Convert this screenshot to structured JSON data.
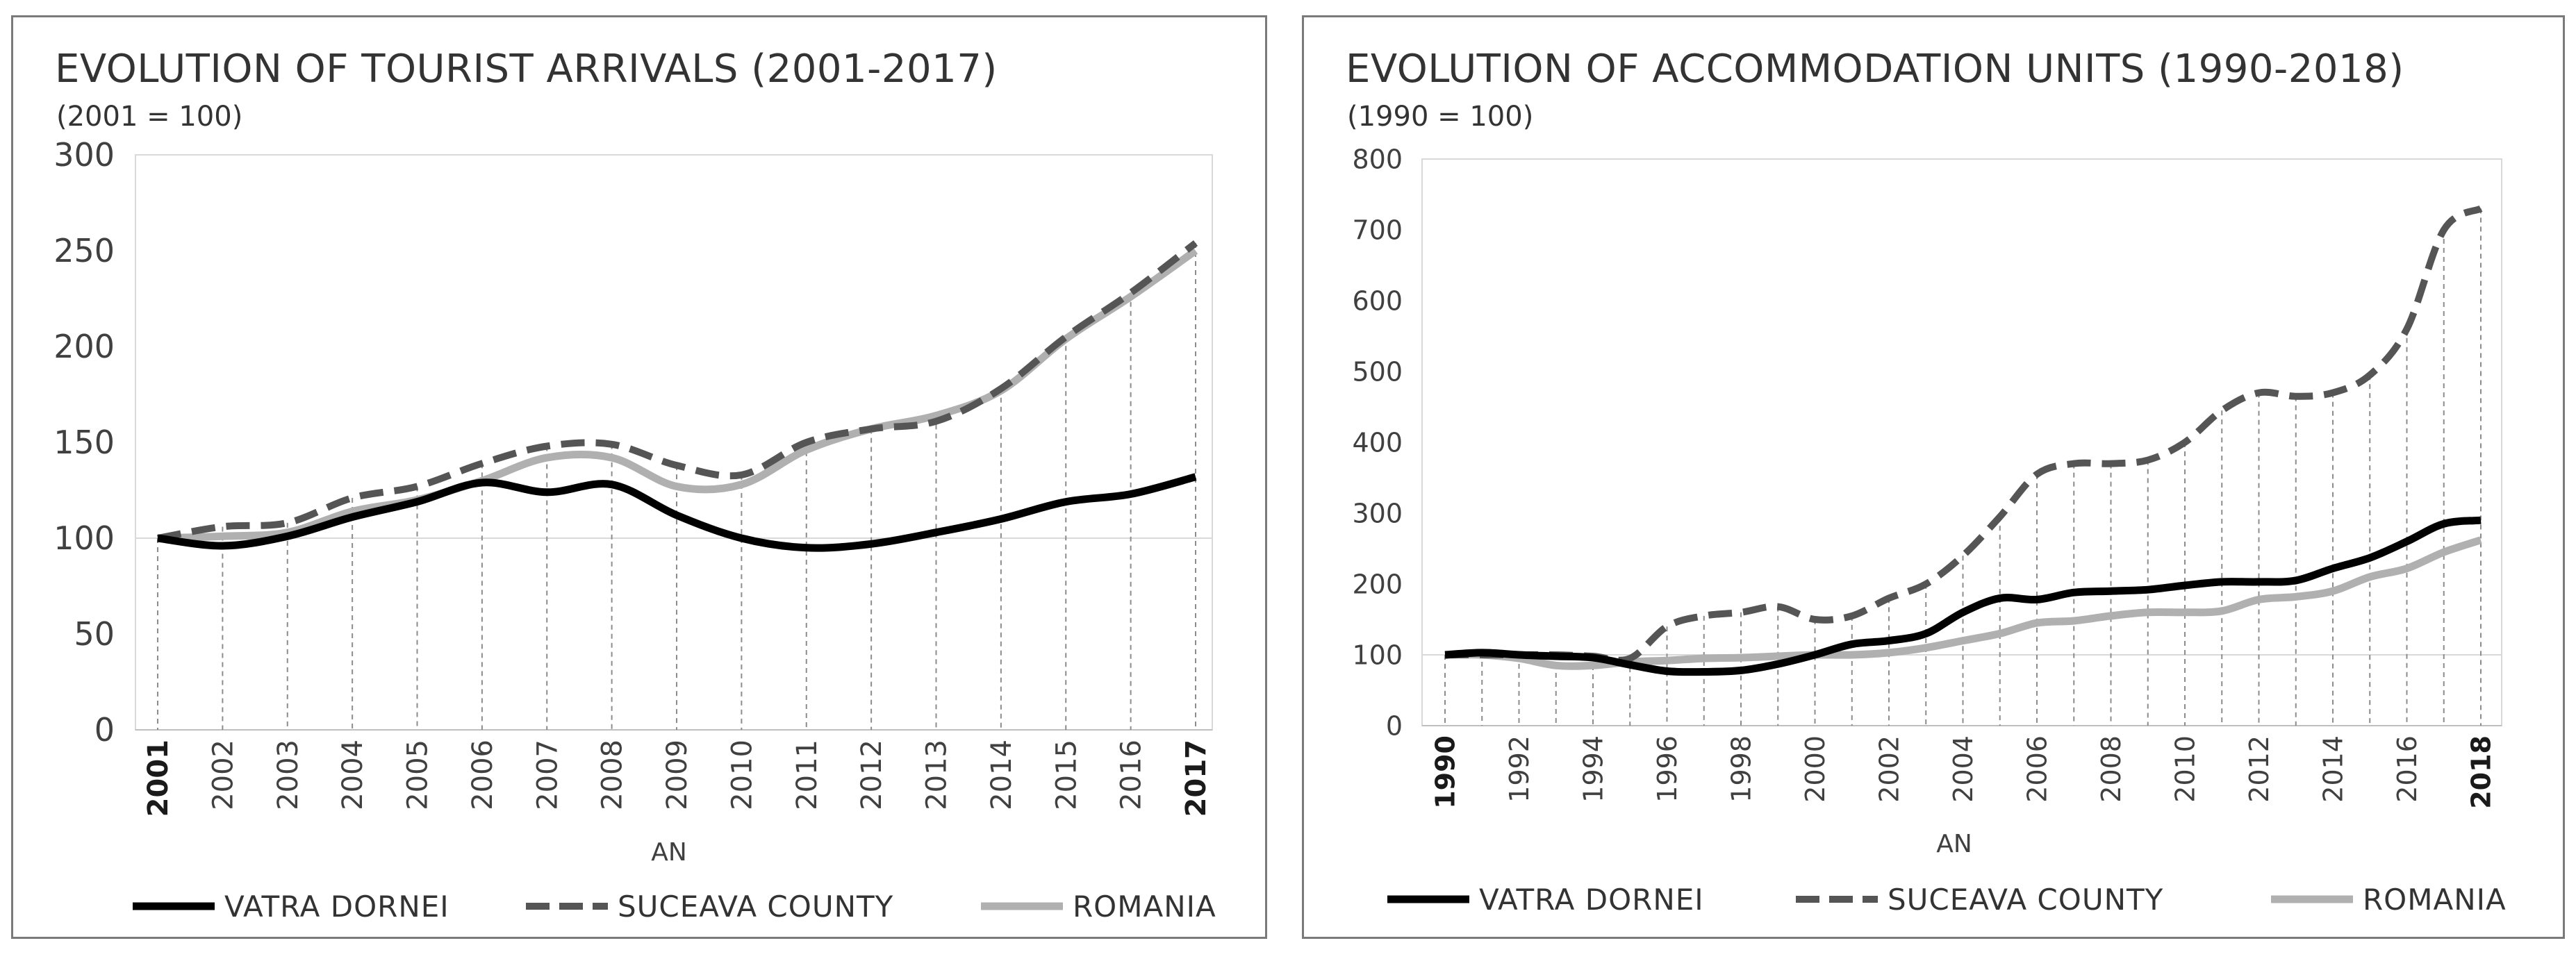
{
  "chart_data": [
    {
      "type": "line",
      "title": "EVOLUTION OF TOURIST ARRIVALS (2001-2017)",
      "subtitle": "(2001 = 100)",
      "xlabel": "AN",
      "ylabel": "",
      "ylim": [
        0,
        300
      ],
      "y_ticks": [
        0,
        50,
        100,
        150,
        200,
        250,
        300
      ],
      "x": [
        "2001",
        "2002",
        "2003",
        "2004",
        "2005",
        "2006",
        "2007",
        "2008",
        "2009",
        "2010",
        "2011",
        "2012",
        "2013",
        "2014",
        "2015",
        "2016",
        "2017"
      ],
      "legend_position": "bottom",
      "series": [
        {
          "name": "VATRA DORNEI",
          "style": "solid",
          "color": "#000000",
          "values": [
            100,
            96,
            101,
            111,
            119,
            129,
            124,
            128,
            112,
            100,
            95,
            97,
            103,
            110,
            119,
            123,
            132
          ]
        },
        {
          "name": "SUCEAVA COUNTY",
          "style": "dashed",
          "color": "#555555",
          "values": [
            100,
            106,
            108,
            121,
            127,
            139,
            148,
            149,
            138,
            133,
            150,
            157,
            161,
            178,
            205,
            228,
            254
          ]
        },
        {
          "name": "ROMANIA",
          "style": "solid",
          "color": "#b0b0b0",
          "values": [
            100,
            101,
            103,
            114,
            120,
            130,
            142,
            142,
            127,
            128,
            146,
            157,
            164,
            177,
            204,
            226,
            250
          ]
        }
      ]
    },
    {
      "type": "line",
      "title": "EVOLUTION OF ACCOMMODATION UNITS (1990-2018)",
      "subtitle": "(1990 = 100)",
      "xlabel": "AN",
      "ylabel": "",
      "ylim": [
        0,
        800
      ],
      "y_ticks": [
        0,
        100,
        200,
        300,
        400,
        500,
        600,
        700,
        800
      ],
      "x": [
        "1990",
        "1991",
        "1992",
        "1993",
        "1994",
        "1995",
        "1996",
        "1997",
        "1998",
        "1999",
        "2000",
        "2001",
        "2002",
        "2003",
        "2004",
        "2005",
        "2006",
        "2007",
        "2008",
        "2009",
        "2010",
        "2011",
        "2012",
        "2013",
        "2014",
        "2015",
        "2016",
        "2017",
        "2018"
      ],
      "x_tick_labels": [
        "1990",
        "1992",
        "1994",
        "1996",
        "1998",
        "2000",
        "2002",
        "2004",
        "2006",
        "2008",
        "2010",
        "2012",
        "2014",
        "2016",
        "2018"
      ],
      "legend_position": "bottom",
      "series": [
        {
          "name": "VATRA DORNEI",
          "style": "solid",
          "color": "#000000",
          "values": [
            100,
            103,
            100,
            98,
            96,
            86,
            77,
            76,
            78,
            87,
            100,
            115,
            120,
            130,
            160,
            180,
            178,
            188,
            190,
            192,
            198,
            203,
            203,
            205,
            222,
            237,
            260,
            285,
            290
          ]
        },
        {
          "name": "SUCEAVA COUNTY",
          "style": "dashed",
          "color": "#555555",
          "values": [
            100,
            100,
            100,
            100,
            98,
            95,
            140,
            155,
            160,
            168,
            150,
            155,
            180,
            200,
            240,
            295,
            355,
            370,
            370,
            375,
            400,
            445,
            470,
            465,
            470,
            495,
            560,
            700,
            730
          ]
        },
        {
          "name": "ROMANIA",
          "style": "solid",
          "color": "#b0b0b0",
          "values": [
            100,
            100,
            95,
            85,
            85,
            90,
            92,
            95,
            96,
            98,
            100,
            100,
            103,
            110,
            120,
            130,
            145,
            148,
            155,
            160,
            160,
            162,
            178,
            182,
            190,
            210,
            222,
            245,
            262
          ]
        }
      ]
    }
  ]
}
